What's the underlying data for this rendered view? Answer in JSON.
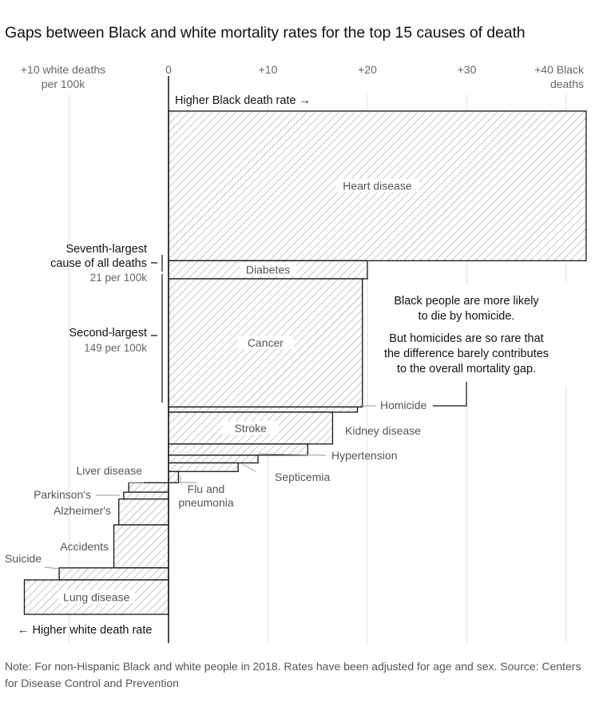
{
  "title": "Gaps between Black and white mortality rates for the top 15 causes of death",
  "note": "Note: For non-Hispanic Black and white people in 2018. Rates have been adjusted for age and sex. Source: Centers for Disease Control and Prevention",
  "axis_labels": {
    "left_line1": "+10 white deaths",
    "left_line2": "per 100k",
    "right_line1": "+40 Black",
    "right_line2": "deaths"
  },
  "direction_labels": {
    "black": "Higher Black death rate →",
    "white": "← Higher white death rate"
  },
  "annotations": {
    "seventh_line1": "Seventh-largest",
    "seventh_line2": "cause of all deaths",
    "seventh_rate": "21 per 100k",
    "second_line1": "Second-largest",
    "second_rate": "149 per 100k",
    "homicide_note_1": "Black people are more likely",
    "homicide_note_2": "to die by homicide.",
    "homicide_note_3": "But homicides are so rare that",
    "homicide_note_4": "the difference barely contributes",
    "homicide_note_5": "to the overall mortality gap."
  },
  "chart_data": {
    "type": "bar",
    "orientation": "horizontal",
    "title": "Gaps between Black and white mortality rates for the top 15 causes of death",
    "x_unit": "deaths per 100k (positive = higher Black death rate, negative = higher white death rate)",
    "xlim": [
      -15,
      42
    ],
    "x_ticks": [
      {
        "value": -10,
        "label": ""
      },
      {
        "value": 0,
        "label": "0"
      },
      {
        "value": 10,
        "label": "+10"
      },
      {
        "value": 20,
        "label": "+20"
      },
      {
        "value": 30,
        "label": "+30"
      },
      {
        "value": 40,
        "label": ""
      }
    ],
    "grid": true,
    "bar_height_meaning": "share of total deaths (bar height scaled by overall death rate)",
    "bars": [
      {
        "cause": "Heart disease",
        "gap": 42,
        "rate": 174
      },
      {
        "cause": "Diabetes",
        "gap": 20,
        "rate": 21
      },
      {
        "cause": "Cancer",
        "gap": 19.5,
        "rate": 149
      },
      {
        "cause": "Homicide",
        "gap": 19,
        "rate": 6
      },
      {
        "cause": "Stroke",
        "gap": 16.5,
        "rate": 37
      },
      {
        "cause": "Kidney disease",
        "gap": 14,
        "rate": 13
      },
      {
        "cause": "Hypertension",
        "gap": 9,
        "rate": 9
      },
      {
        "cause": "Septicemia",
        "gap": 7,
        "rate": 10
      },
      {
        "cause": "Flu and pneumonia",
        "gap": 1,
        "rate": 13
      },
      {
        "cause": "Liver disease",
        "gap": -4,
        "rate": 11
      },
      {
        "cause": "Parkinson's",
        "gap": -4.5,
        "rate": 8
      },
      {
        "cause": "Alzheimer's",
        "gap": -5,
        "rate": 30
      },
      {
        "cause": "Accidents",
        "gap": -5.5,
        "rate": 50
      },
      {
        "cause": "Suicide",
        "gap": -11,
        "rate": 14
      },
      {
        "cause": "Lung disease",
        "gap": -14.5,
        "rate": 40
      }
    ]
  }
}
